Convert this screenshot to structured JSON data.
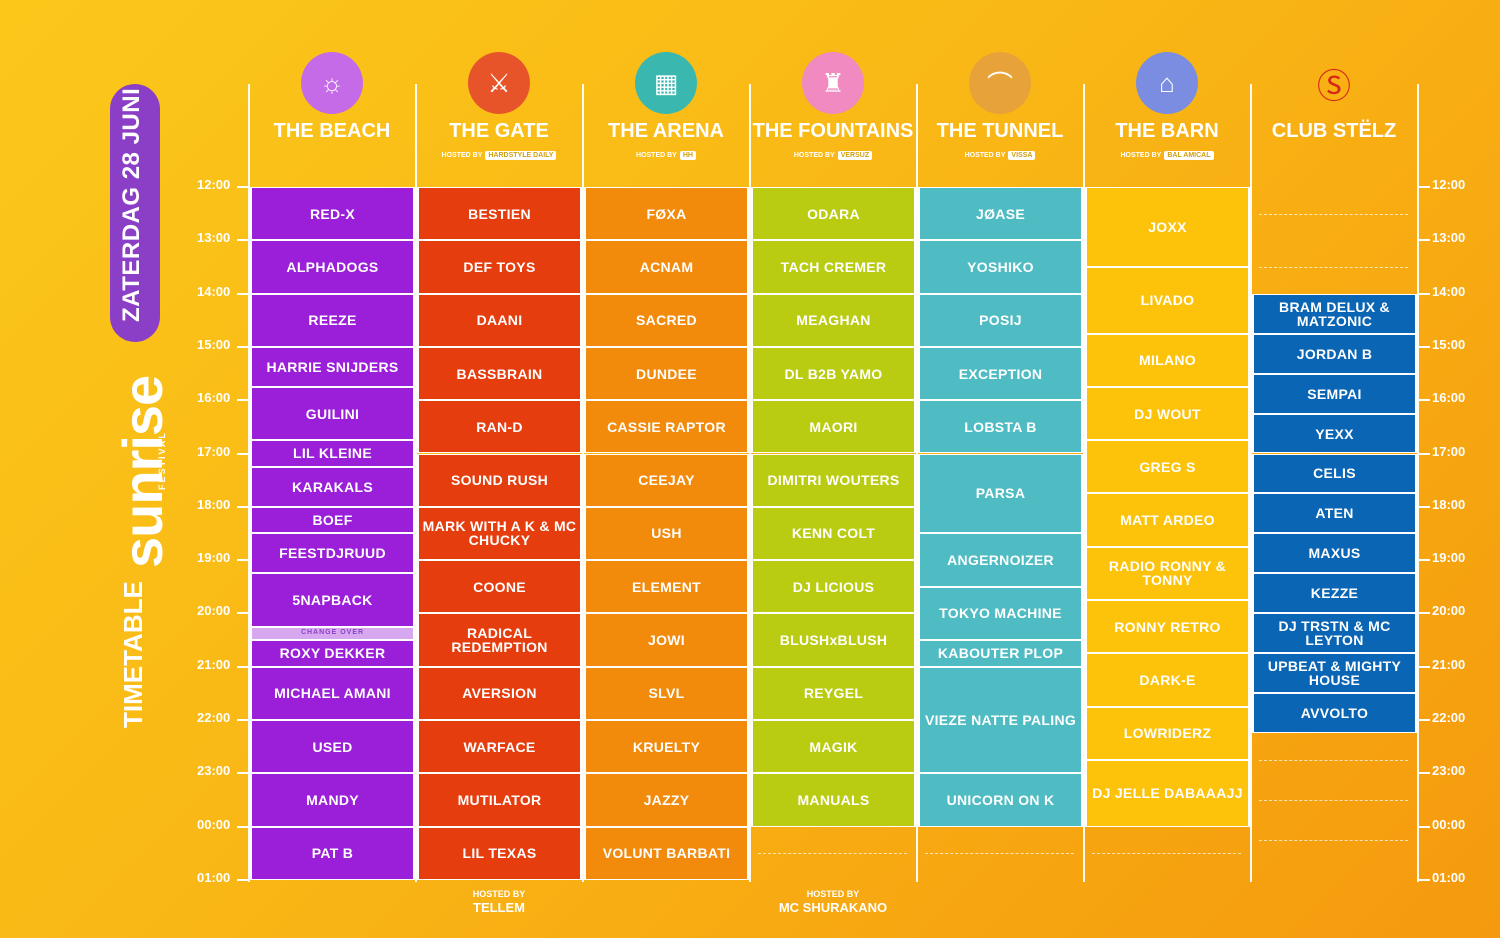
{
  "side": {
    "date": "ZATERDAG 28 JUNI",
    "logo": "sunrise",
    "logo_sub": "FESTIVAL",
    "title": "TIMETABLE"
  },
  "times": [
    "12:00",
    "13:00",
    "14:00",
    "15:00",
    "16:00",
    "17:00",
    "18:00",
    "19:00",
    "20:00",
    "21:00",
    "22:00",
    "23:00",
    "00:00",
    "01:00"
  ],
  "stages": [
    {
      "name": "THE BEACH",
      "hosted": "",
      "hosted_tag": "",
      "color": "#9b1fd9",
      "icon": "☼",
      "badge": "#c56be8",
      "slots": [
        [
          "RED-X",
          0,
          1
        ],
        [
          "ALPHADOGS",
          1,
          1
        ],
        [
          "REEZE",
          2,
          1
        ],
        [
          "HARRIE SNIJDERS",
          3,
          0.75
        ],
        [
          "GUILINI",
          3.75,
          1
        ],
        [
          "LIL KLEINE",
          4.75,
          0.5
        ],
        [
          "KARAKALS",
          5.25,
          0.75
        ],
        [
          "BOEF",
          6,
          0.5
        ],
        [
          "FEESTDJRUUD",
          6.5,
          0.75
        ],
        [
          "5NAPBACK",
          7.25,
          1
        ],
        [
          "CHANGE OVER",
          8.25,
          0.25,
          "small"
        ],
        [
          "ROXY DEKKER",
          8.5,
          0.5
        ],
        [
          "MICHAEL AMANI",
          9,
          1
        ],
        [
          "USED",
          10,
          1
        ],
        [
          "MANDY",
          11,
          1
        ],
        [
          "PAT B",
          12,
          1
        ]
      ]
    },
    {
      "name": "THE GATE",
      "hosted": "HOSTED BY",
      "hosted_tag": "HARDSTYLE DAILY",
      "color": "#e53d0e",
      "icon": "⚔",
      "badge": "#e8542a",
      "slots": [
        [
          "BESTIEN",
          0,
          1
        ],
        [
          "DEF TOYS",
          1,
          1
        ],
        [
          "DAANI",
          2,
          1
        ],
        [
          "BASSBRAIN",
          3,
          1
        ],
        [
          "RAN-D",
          4,
          1
        ],
        [
          "SOUND RUSH",
          5,
          1
        ],
        [
          "MARK WITH A K & MC CHUCKY",
          6,
          1
        ],
        [
          "COONE",
          7,
          1
        ],
        [
          "RADICAL REDEMPTION",
          8,
          1
        ],
        [
          "AVERSION",
          9,
          1
        ],
        [
          "WARFACE",
          10,
          1
        ],
        [
          "MUTILATOR",
          11,
          1
        ],
        [
          "LIL TEXAS",
          12,
          1
        ]
      ]
    },
    {
      "name": "THE ARENA",
      "hosted": "HOSTED BY",
      "hosted_tag": "HH",
      "color": "#f28a0c",
      "icon": "▦",
      "badge": "#3ab8b0",
      "slots": [
        [
          "FØXA",
          0,
          1
        ],
        [
          "ACNAM",
          1,
          1
        ],
        [
          "SACRED",
          2,
          1
        ],
        [
          "DUNDEE",
          3,
          1
        ],
        [
          "CASSIE RAPTOR",
          4,
          1
        ],
        [
          "CEEJAY",
          5,
          1
        ],
        [
          "USH",
          6,
          1
        ],
        [
          "ELEMENT",
          7,
          1
        ],
        [
          "JOWI",
          8,
          1
        ],
        [
          "SLVL",
          9,
          1
        ],
        [
          "KRUELTY",
          10,
          1
        ],
        [
          "JAZZY",
          11,
          1
        ],
        [
          "VOLUNT BARBATI",
          12,
          1
        ]
      ]
    },
    {
      "name": "THE FOUNTAINS",
      "hosted": "HOSTED BY",
      "hosted_tag": "VERSUZ",
      "color": "#b9cc12",
      "icon": "♜",
      "badge": "#f08ac0",
      "slots": [
        [
          "ODARA",
          0,
          1
        ],
        [
          "TACH CREMER",
          1,
          1
        ],
        [
          "MEAGHAN",
          2,
          1
        ],
        [
          "DL B2B YAMO",
          3,
          1
        ],
        [
          "MAORI",
          4,
          1
        ],
        [
          "DIMITRI WOUTERS",
          5,
          1
        ],
        [
          "KENN COLT",
          6,
          1
        ],
        [
          "DJ LICIOUS",
          7,
          1
        ],
        [
          "BLUSHxBLUSH",
          8,
          1
        ],
        [
          "REYGEL",
          9,
          1
        ],
        [
          "MAGIK",
          10,
          1
        ],
        [
          "MANUALS",
          11,
          1
        ]
      ]
    },
    {
      "name": "THE TUNNEL",
      "hosted": "HOSTED BY",
      "hosted_tag": "VISSA",
      "color": "#4fbcc4",
      "icon": "⌒",
      "badge": "#e8a23a",
      "slots": [
        [
          "JØASE",
          0,
          1
        ],
        [
          "YOSHIKO",
          1,
          1
        ],
        [
          "POSIJ",
          2,
          1
        ],
        [
          "EXCEPTION",
          3,
          1
        ],
        [
          "LOBSTA B",
          4,
          1
        ],
        [
          "PARSA",
          5,
          1.5
        ],
        [
          "ANGERNOIZER",
          6.5,
          1
        ],
        [
          "TOKYO MACHINE",
          7.5,
          1
        ],
        [
          "KABOUTER PLOP",
          8.5,
          0.5
        ],
        [
          "VIEZE NATTE PALING",
          9,
          2
        ],
        [
          "UNICORN ON K",
          11,
          1
        ]
      ]
    },
    {
      "name": "THE BARN",
      "hosted": "HOSTED BY",
      "hosted_tag": "BAL AMICAL",
      "color": "#fcc30a",
      "icon": "⌂",
      "badge": "#7a8de0",
      "slots": [
        [
          "JOXX",
          0,
          1.5
        ],
        [
          "LIVADO",
          1.5,
          1.25
        ],
        [
          "MILANO",
          2.75,
          1
        ],
        [
          "DJ WOUT",
          3.75,
          1
        ],
        [
          "GREG S",
          4.75,
          1
        ],
        [
          "MATT ARDEO",
          5.75,
          1
        ],
        [
          "RADIO RONNY & TONNY",
          6.75,
          1
        ],
        [
          "RONNY RETRO",
          7.75,
          1
        ],
        [
          "DARK-E",
          8.75,
          1
        ],
        [
          "LOWRIDERZ",
          9.75,
          1
        ],
        [
          "DJ JELLE DABAAAJJ",
          10.75,
          1.25
        ]
      ]
    },
    {
      "name": "CLUB STËLZ",
      "hosted": "",
      "hosted_tag": "",
      "color": "#0a66b5",
      "icon": "Ⓢ",
      "badge": "transparent",
      "slots": [
        [
          "BRAM DELUX & MATZONIC",
          2,
          0.75
        ],
        [
          "JORDAN B",
          2.75,
          0.75
        ],
        [
          "SEMPAI",
          3.5,
          0.75
        ],
        [
          "YEXX",
          4.25,
          0.75
        ],
        [
          "CELIS",
          5,
          0.75
        ],
        [
          "ATEN",
          5.75,
          0.75
        ],
        [
          "MAXUS",
          6.5,
          0.75
        ],
        [
          "KEZZE",
          7.25,
          0.75
        ],
        [
          "DJ TRSTN & MC LEYTON",
          8,
          0.75
        ],
        [
          "UPBEAT & MIGHTY HOUSE",
          8.75,
          0.75
        ],
        [
          "AVVOLTO",
          9.5,
          0.75
        ]
      ]
    }
  ],
  "footers": [
    {
      "col": 1,
      "small": "HOSTED BY",
      "big": "TELLEM"
    },
    {
      "col": 3,
      "small": "HOSTED BY",
      "big": "MC SHURAKANO"
    }
  ]
}
